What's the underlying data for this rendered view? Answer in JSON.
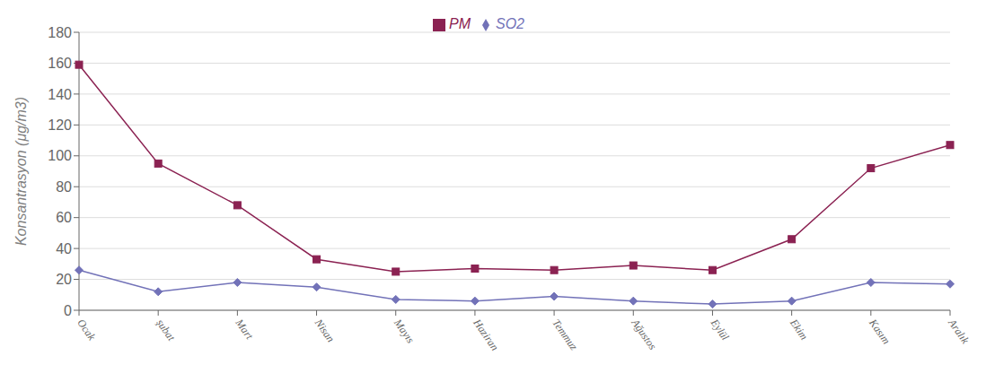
{
  "chart_data": {
    "type": "line",
    "categories": [
      "Ocak",
      "şubat",
      "Mart",
      "Nisan",
      "Mayıs",
      "Haziran",
      "Temmuz",
      "Ağustos",
      "Eylül",
      "Ekim",
      "Kasım",
      "Aralık"
    ],
    "series": [
      {
        "name": "SO2",
        "color": "#7272b8",
        "marker": "diamond",
        "values": [
          26,
          12,
          18,
          15,
          7,
          6,
          9,
          6,
          4,
          6,
          18,
          17
        ]
      },
      {
        "name": "PM",
        "color": "#8b2252",
        "marker": "square",
        "values": [
          159,
          95,
          68,
          33,
          25,
          27,
          26,
          29,
          26,
          46,
          92,
          107
        ]
      }
    ],
    "ylabel": "Konsantrasyon (μg/m3)",
    "ylim": [
      0,
      180
    ],
    "yticks": [
      0,
      20,
      40,
      60,
      80,
      100,
      120,
      140,
      160,
      180
    ],
    "grid": true,
    "legend": "top"
  }
}
